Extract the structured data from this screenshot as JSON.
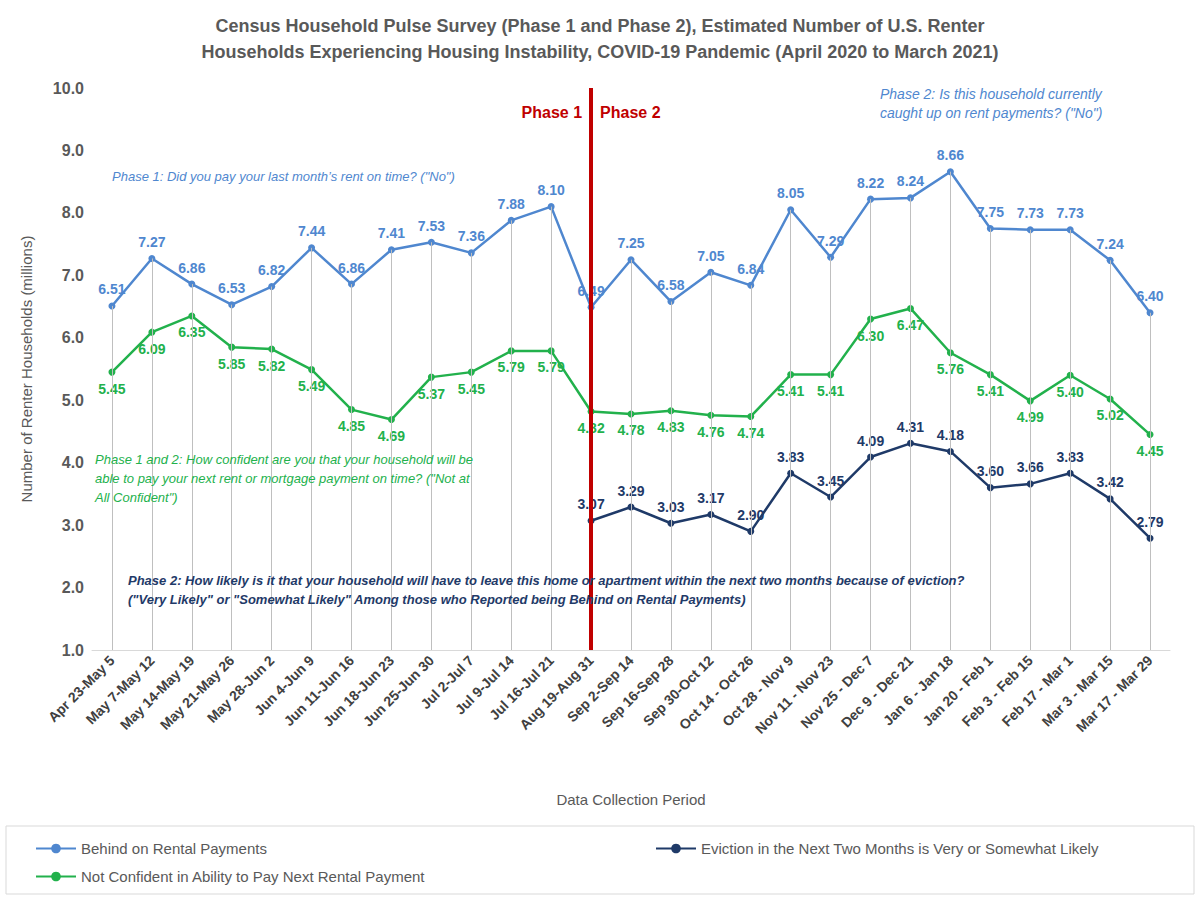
{
  "chart_data": {
    "type": "line",
    "title": "Census Household Pulse Survey (Phase 1 and Phase 2), Estimated Number of U.S. Renter\nHouseholds Experiencing Housing Instability, COVID-19 Pandemic (April 2020 to March 2021)",
    "x_label": "Data Collection Period",
    "y_label": "Number of Renter Households (millions)",
    "categories": [
      "Apr 23-May 5",
      "May 7-May 12",
      "May 14-May 19",
      "May 21-May 26",
      "May 28-Jun 2",
      "Jun 4-Jun 9",
      "Jun 11-Jun 16",
      "Jun 18-Jun 23",
      "Jun 25-Jun 30",
      "Jul 2-Jul 7",
      "Jul 9-Jul 14",
      "Jul 16-Jul 21",
      "Aug 19-Aug 31",
      "Sep 2-Sep 14",
      "Sep 16-Sep 28",
      "Sep 30-Oct 12",
      "Oct 14 - Oct 26",
      "Oct 28 - Nov 9",
      "Nov 11 - Nov 23",
      "Nov 25 - Dec 7",
      "Dec 9 - Dec 21",
      "Jan 6 - Jan 18",
      "Jan 20 - Feb 1",
      "Feb 3 - Feb 15",
      "Feb 17 - Mar 1",
      "Mar 3 - Mar 15",
      "Mar 17 - Mar 29"
    ],
    "series": [
      {
        "name": "Behind on Rental Payments",
        "color": "#4f87cf",
        "marker": "circle",
        "line_style": "solid",
        "values": [
          6.51,
          7.27,
          6.86,
          6.53,
          6.82,
          7.44,
          6.86,
          7.41,
          7.53,
          7.36,
          7.88,
          8.1,
          6.49,
          7.25,
          6.58,
          7.05,
          6.84,
          8.05,
          7.29,
          8.22,
          8.24,
          8.66,
          7.75,
          7.73,
          7.73,
          7.24,
          6.4
        ],
        "value_labels": [
          "6.51",
          "7.27",
          "6.86",
          "6.53",
          "6.82",
          "7.44",
          "6.86",
          "7.41",
          "7.53",
          "7.36",
          "7.88",
          "8.10",
          "6.49",
          "7.25",
          "6.58",
          "7.05",
          "6.84",
          "8.05",
          "7.29",
          "8.22",
          "8.24",
          "8.66",
          "7.75",
          "7.73",
          "7.73",
          "7.24",
          "6.40"
        ]
      },
      {
        "name": "Not Confident in Ability to Pay Next Rental Payment",
        "color": "#22b14c",
        "marker": "circle",
        "line_style": "solid",
        "values": [
          5.45,
          6.09,
          6.35,
          5.85,
          5.82,
          5.49,
          4.85,
          4.69,
          5.37,
          5.45,
          5.79,
          5.79,
          4.82,
          4.78,
          4.83,
          4.76,
          4.74,
          5.41,
          5.41,
          6.3,
          6.47,
          5.76,
          5.41,
          4.99,
          5.4,
          5.02,
          4.45
        ],
        "value_labels": [
          "5.45",
          "6.09",
          "6.35",
          "5.85",
          "5.82",
          "5.49",
          "4.85",
          "4.69",
          "5.37",
          "5.45",
          "5.79",
          "5.79",
          "4.82",
          "4.78",
          "4.83",
          "4.76",
          "4.74",
          "5.41",
          "5.41",
          "6.30",
          "6.47",
          "5.76",
          "5.41",
          "4.99",
          "5.40",
          "5.02",
          "4.45"
        ]
      },
      {
        "name": "Eviction in the Next Two Months is Very or Somewhat Likely",
        "color": "#1f3a68",
        "marker": "circle",
        "line_style": "solid",
        "values": [
          null,
          null,
          null,
          null,
          null,
          null,
          null,
          null,
          null,
          null,
          null,
          null,
          3.07,
          3.29,
          3.03,
          3.17,
          2.9,
          3.83,
          3.45,
          4.09,
          4.31,
          4.18,
          3.6,
          3.66,
          3.83,
          3.42,
          2.79
        ],
        "value_labels": [
          null,
          null,
          null,
          null,
          null,
          null,
          null,
          null,
          null,
          null,
          null,
          null,
          "3.07",
          "3.29",
          "3.03",
          "3.17",
          "2.90",
          "3.83",
          "3.45",
          "4.09",
          "4.31",
          "4.18",
          "3.60",
          "3.66",
          "3.83",
          "3.42",
          "2.79"
        ]
      }
    ],
    "ylim": [
      1,
      10
    ],
    "yticks": [
      {
        "value": 1,
        "label": "1.0"
      },
      {
        "value": 2,
        "label": "2.0"
      },
      {
        "value": 3,
        "label": "3.0"
      },
      {
        "value": 4,
        "label": "4.0"
      },
      {
        "value": 5,
        "label": "5.0"
      },
      {
        "value": 6,
        "label": "6.0"
      },
      {
        "value": 7,
        "label": "7.0"
      },
      {
        "value": 8,
        "label": "8.0"
      },
      {
        "value": 9,
        "label": "9.0"
      },
      {
        "value": 10,
        "label": "10.0"
      }
    ],
    "grid": true,
    "data_labels": true,
    "legend": "bottom",
    "phase_divider": {
      "category": "Aug 19-Aug 31",
      "labels": [
        "Phase 1",
        "Phase 2"
      ],
      "color": "#c00000"
    },
    "annotations": [
      {
        "text": "Phase 1: Did you pay your last month’s rent on time? (\"No\")",
        "series": "Behind on Rental Payments"
      },
      {
        "text": "Phase 2: Is this household currently\ncaught up on rent payments? (\"No\")",
        "series": "Behind on Rental Payments"
      },
      {
        "text": "Phase 1 and 2: How confident are you that your household will be\nable to pay your next rent or mortgage payment on time? (\"Not at\nAll Confident\")",
        "series": "Not Confident in Ability to Pay Next Rental Payment"
      },
      {
        "text": "Phase 2: How likely is it that your household will have to leave this home or apartment within the next two months because of eviction?\n(\"Very Likely\" or \"Somewhat Likely\" Among those who Reported being Behind on Rental Payments)",
        "series": "Eviction in the Next Two Months is Very or Somewhat Likely"
      }
    ]
  }
}
